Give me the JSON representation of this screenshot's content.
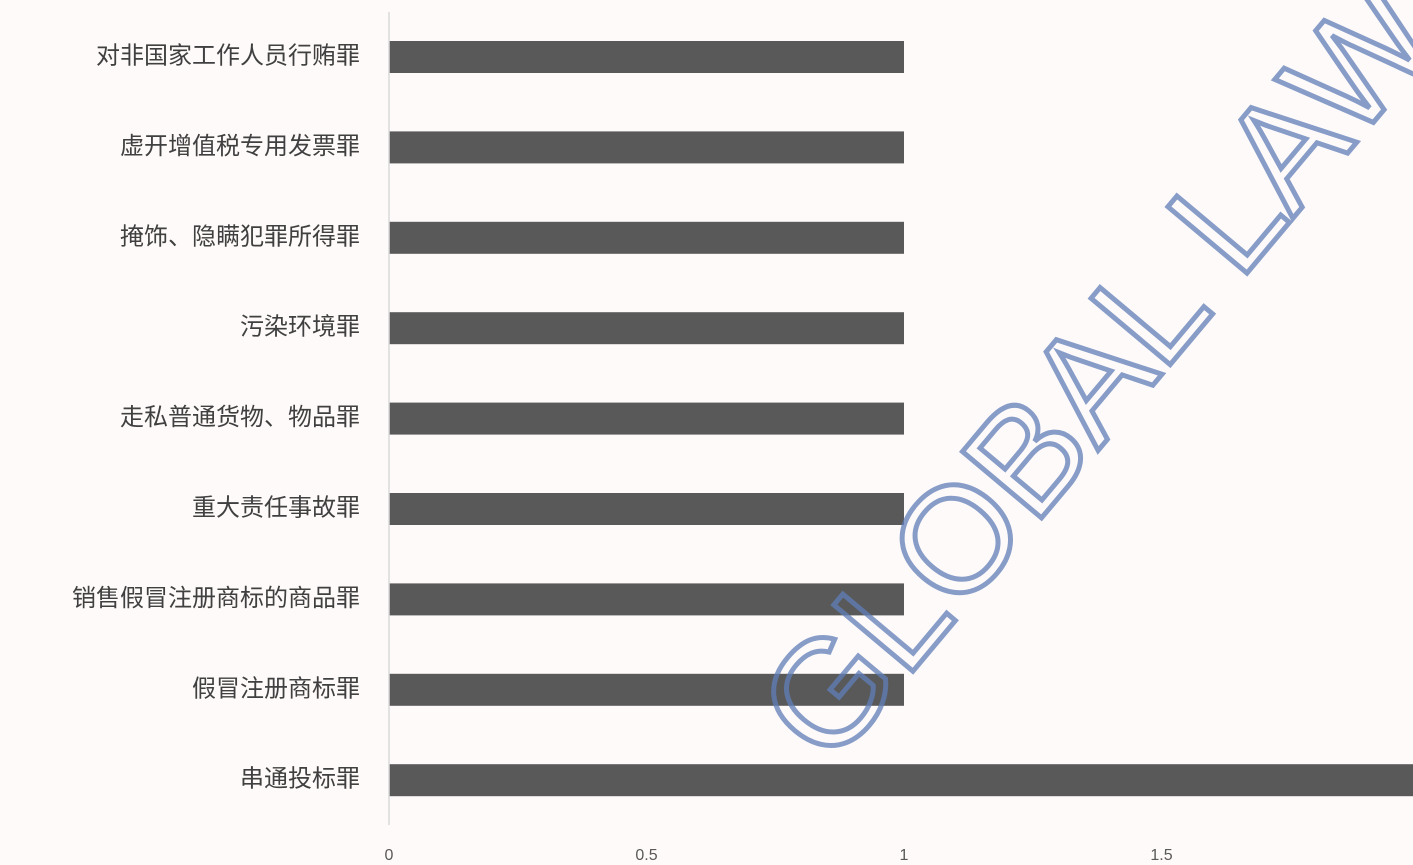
{
  "chart_data": {
    "type": "hbar",
    "categories": [
      "对非国家工作人员行贿罪",
      "虚开增值税专用发票罪",
      "掩饰、隐瞒犯罪所得罪",
      "污染环境罪",
      "走私普通货物、物品罪",
      "重大责任事故罪",
      "销售假冒注册商标的商品罪",
      "假冒注册商标罪",
      "串通投标罪"
    ],
    "values": [
      1,
      1,
      1,
      1,
      1,
      1,
      1,
      1,
      2
    ],
    "color": "#595959",
    "xlim": [
      0,
      2
    ],
    "xticks": [
      0,
      0.5,
      1,
      1.5
    ],
    "grid": false,
    "watermark": "GLOBAL LAW"
  }
}
